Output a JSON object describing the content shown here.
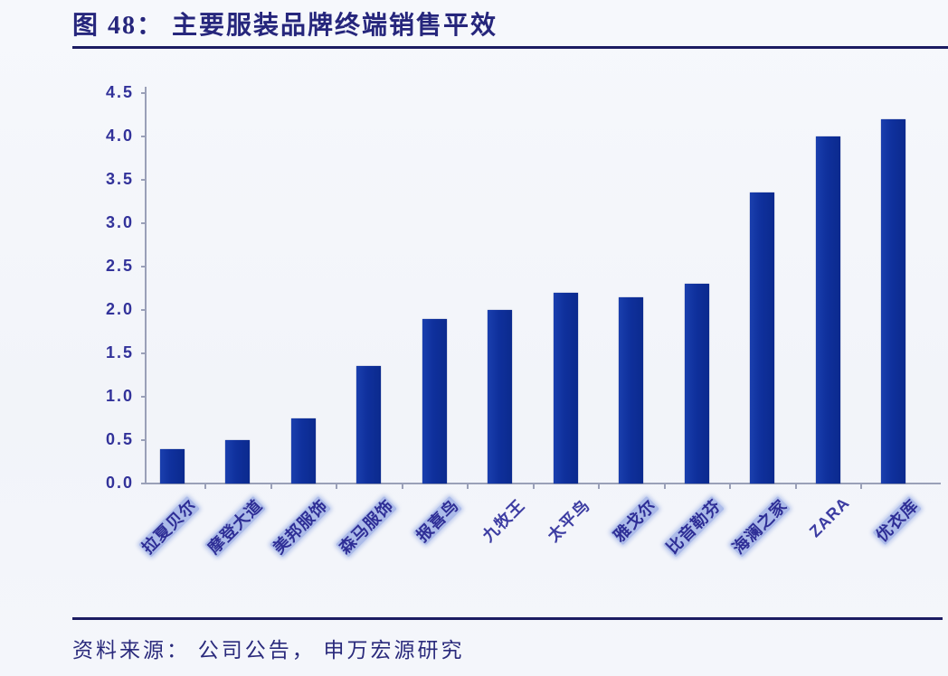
{
  "title": "图 48： 主要服装品牌终端销售平效",
  "footer": "资料来源： 公司公告， 申万宏源研究",
  "chart_data": {
    "type": "bar",
    "title": "主要服装品牌终端销售平效",
    "categories": [
      "拉夏贝尔",
      "摩登大道",
      "美邦服饰",
      "森马服饰",
      "报喜鸟",
      "九牧王",
      "太平鸟",
      "雅戈尔",
      "比音勒芬",
      "海澜之家",
      "ZARA",
      "优衣库"
    ],
    "values": [
      0.4,
      0.5,
      0.75,
      1.35,
      1.9,
      2.0,
      2.2,
      2.15,
      2.3,
      3.35,
      4.0,
      4.2
    ],
    "highlighted": [
      true,
      true,
      true,
      true,
      true,
      false,
      false,
      true,
      true,
      true,
      false,
      true
    ],
    "xlabel": "",
    "ylabel": "",
    "ylim": [
      0,
      4.5
    ],
    "ytick_step": 0.5,
    "ytick_labels": [
      "0.0",
      "0.5",
      "1.0",
      "1.5",
      "2.0",
      "2.5",
      "3.0",
      "3.5",
      "4.0",
      "4.5"
    ],
    "grid": false,
    "legend": "none",
    "bar_color": "#0f309c",
    "axis_color": "#9aa0b8",
    "tick_label_color": "#32329a",
    "category_label_color": "#3c3ca2"
  }
}
